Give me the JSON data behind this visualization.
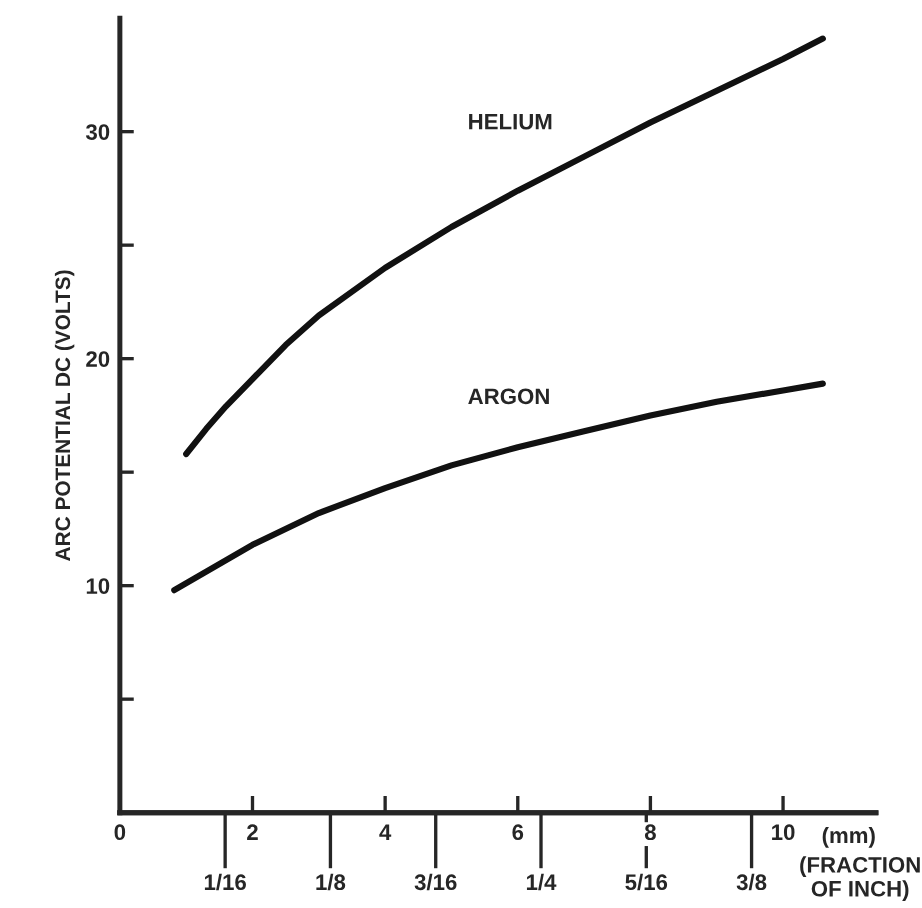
{
  "chart_data": {
    "type": "line",
    "xlabel": "(mm)",
    "ylabel": "ARC POTENTIAL DC (VOLTS)",
    "x2label": "(FRACTION\nOF INCH)",
    "xlim": [
      0,
      11.4
    ],
    "xticks": [
      0,
      2,
      4,
      6,
      8,
      10
    ],
    "x2lim": [
      0,
      0.4488
    ],
    "x2ticks": [
      {
        "value": 0.0625,
        "label": "1/16"
      },
      {
        "value": 0.125,
        "label": "1/8"
      },
      {
        "value": 0.1875,
        "label": "3/16"
      },
      {
        "value": 0.25,
        "label": "1/4"
      },
      {
        "value": 0.3125,
        "label": "5/16"
      },
      {
        "value": 0.375,
        "label": "3/8"
      }
    ],
    "ylim": [
      0,
      35
    ],
    "yticks": [
      {
        "value": 5,
        "label": null
      },
      10,
      {
        "value": 15,
        "label": null
      },
      20,
      {
        "value": 25,
        "label": null
      },
      30
    ],
    "series": [
      {
        "name": "HELIUM",
        "color": "#111111",
        "x": [
          1.0,
          1.3,
          1.6,
          2,
          2.5,
          3,
          4,
          5,
          6,
          7,
          8,
          9,
          10,
          10.6
        ],
        "values": [
          15.8,
          16.9,
          17.9,
          19.1,
          20.6,
          21.9,
          24,
          25.8,
          27.4,
          28.9,
          30.4,
          31.8,
          33.2,
          34.1
        ]
      },
      {
        "name": "ARGON",
        "color": "#111111",
        "x": [
          0.82,
          2,
          3,
          4,
          5,
          6,
          7,
          8,
          9,
          10,
          10.6
        ],
        "values": [
          9.8,
          11.8,
          13.2,
          14.3,
          15.3,
          16.1,
          16.8,
          17.5,
          18.1,
          18.6,
          18.9
        ]
      }
    ],
    "grid": false,
    "legend": false,
    "marker": "none",
    "line_style": "solid"
  }
}
